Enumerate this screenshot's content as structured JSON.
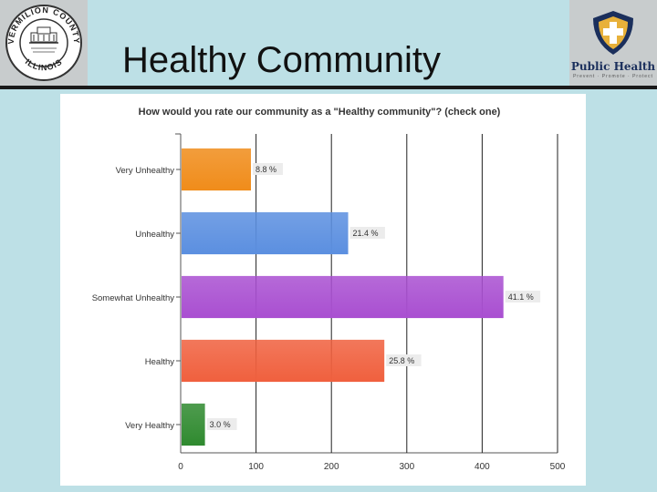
{
  "slide": {
    "title": "Healthy Community",
    "colors": {
      "background": "#bde0e6",
      "rule": "#1a1a1a",
      "logo_panel": "#c8cccd",
      "public_health_navy": "#1b2f5c"
    }
  },
  "logos": {
    "left": {
      "icon": "vermilion-county-seal-icon",
      "text_top": "VERMILION COUNTY",
      "text_bottom": "ILLINOIS"
    },
    "right": {
      "icon": "public-health-shield-icon",
      "text": "Public Health",
      "tagline": "Prevent · Promote · Protect"
    }
  },
  "chart_data": {
    "type": "bar",
    "orientation": "horizontal",
    "title": "How would you rate our community as a \"Healthy community\"? (check one)",
    "categories": [
      "Very Unhealthy",
      "Unhealthy",
      "Somewhat Unhealthy",
      "Healthy",
      "Very Healthy"
    ],
    "values": [
      92,
      221,
      427,
      269,
      31
    ],
    "percent_labels": [
      "8.8 %",
      "21.4 %",
      "41.1 %",
      "25.8 %",
      "3.0 %"
    ],
    "colors": [
      "#f08c1a",
      "#5b8fe0",
      "#a94fd1",
      "#f0603e",
      "#2f8a2f"
    ],
    "x_ticks": [
      0,
      100,
      200,
      300,
      400,
      500
    ],
    "xlim": [
      0,
      500
    ],
    "xlabel": "",
    "ylabel": "",
    "grid": true
  }
}
